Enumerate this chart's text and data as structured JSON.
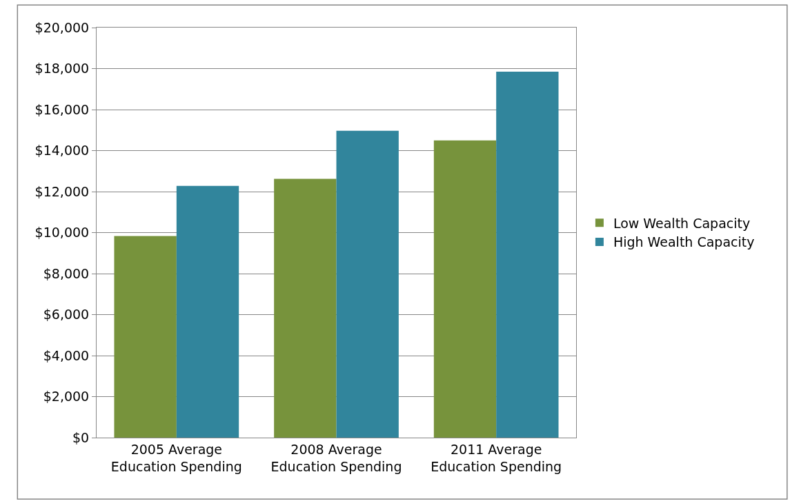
{
  "chart_data": {
    "type": "bar",
    "categories": [
      "2005 Average Education Spending",
      "2008 Average Education Spending",
      "2011 Average Education Spending"
    ],
    "series": [
      {
        "name": "Low Wealth Capacity",
        "color": "#77933c",
        "values": [
          9830,
          12620,
          14500
        ]
      },
      {
        "name": "High Wealth Capacity",
        "color": "#31859c",
        "values": [
          12280,
          14970,
          17850
        ]
      }
    ],
    "ylim": [
      0,
      20000
    ],
    "yticks": [
      {
        "value": 0,
        "label": "$0"
      },
      {
        "value": 2000,
        "label": "$2,000"
      },
      {
        "value": 4000,
        "label": "$4,000"
      },
      {
        "value": 6000,
        "label": "$6,000"
      },
      {
        "value": 8000,
        "label": "$8,000"
      },
      {
        "value": 10000,
        "label": "$10,000"
      },
      {
        "value": 12000,
        "label": "$12,000"
      },
      {
        "value": 14000,
        "label": "$14,000"
      },
      {
        "value": 16000,
        "label": "$16,000"
      },
      {
        "value": 18000,
        "label": "$18,000"
      },
      {
        "value": 20000,
        "label": "$20,000"
      }
    ],
    "grid": "y",
    "legend": "right"
  }
}
